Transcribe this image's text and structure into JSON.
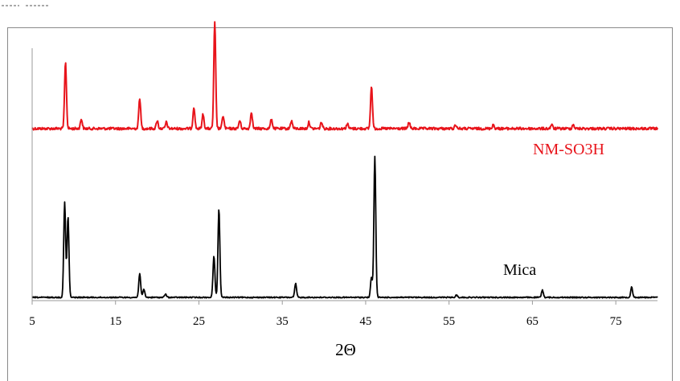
{
  "chart_data": {
    "type": "line",
    "title": "",
    "xlabel": "2Θ",
    "ylabel": "",
    "xlim": [
      5,
      80
    ],
    "x_ticks": [
      "5",
      "15",
      "25",
      "35",
      "45",
      "55",
      "65",
      "75"
    ],
    "x_tick_values": [
      5,
      15,
      25,
      35,
      45,
      55,
      65,
      75
    ],
    "grid": false,
    "legend": "inline labels beside each trace",
    "y_axis_labels_shown": false,
    "series": [
      {
        "name": "NM-SO3H",
        "color": "#e8141b",
        "baseline": 210,
        "peaks": [
          {
            "x": 9.0,
            "height": 82
          },
          {
            "x": 10.9,
            "height": 12
          },
          {
            "x": 17.9,
            "height": 38
          },
          {
            "x": 20.0,
            "height": 10
          },
          {
            "x": 21.1,
            "height": 8
          },
          {
            "x": 24.4,
            "height": 27
          },
          {
            "x": 25.5,
            "height": 18
          },
          {
            "x": 26.9,
            "height": 132
          },
          {
            "x": 27.9,
            "height": 16
          },
          {
            "x": 29.9,
            "height": 10
          },
          {
            "x": 31.3,
            "height": 21
          },
          {
            "x": 33.7,
            "height": 12
          },
          {
            "x": 36.1,
            "height": 10
          },
          {
            "x": 38.2,
            "height": 8
          },
          {
            "x": 39.7,
            "height": 8
          },
          {
            "x": 42.8,
            "height": 6
          },
          {
            "x": 45.7,
            "height": 53
          },
          {
            "x": 50.2,
            "height": 8
          },
          {
            "x": 55.8,
            "height": 5
          },
          {
            "x": 60.3,
            "height": 5
          },
          {
            "x": 67.3,
            "height": 5
          },
          {
            "x": 69.9,
            "height": 5
          }
        ]
      },
      {
        "name": "Mica",
        "color": "#000000",
        "baseline": 0,
        "peaks": [
          {
            "x": 8.9,
            "height": 118
          },
          {
            "x": 9.3,
            "height": 100
          },
          {
            "x": 17.9,
            "height": 30
          },
          {
            "x": 18.4,
            "height": 10
          },
          {
            "x": 21.0,
            "height": 4
          },
          {
            "x": 26.8,
            "height": 52
          },
          {
            "x": 27.4,
            "height": 110
          },
          {
            "x": 36.6,
            "height": 17
          },
          {
            "x": 45.7,
            "height": 25
          },
          {
            "x": 46.1,
            "height": 175
          },
          {
            "x": 55.9,
            "height": 3
          },
          {
            "x": 66.2,
            "height": 9
          },
          {
            "x": 76.9,
            "height": 13
          }
        ]
      }
    ]
  }
}
